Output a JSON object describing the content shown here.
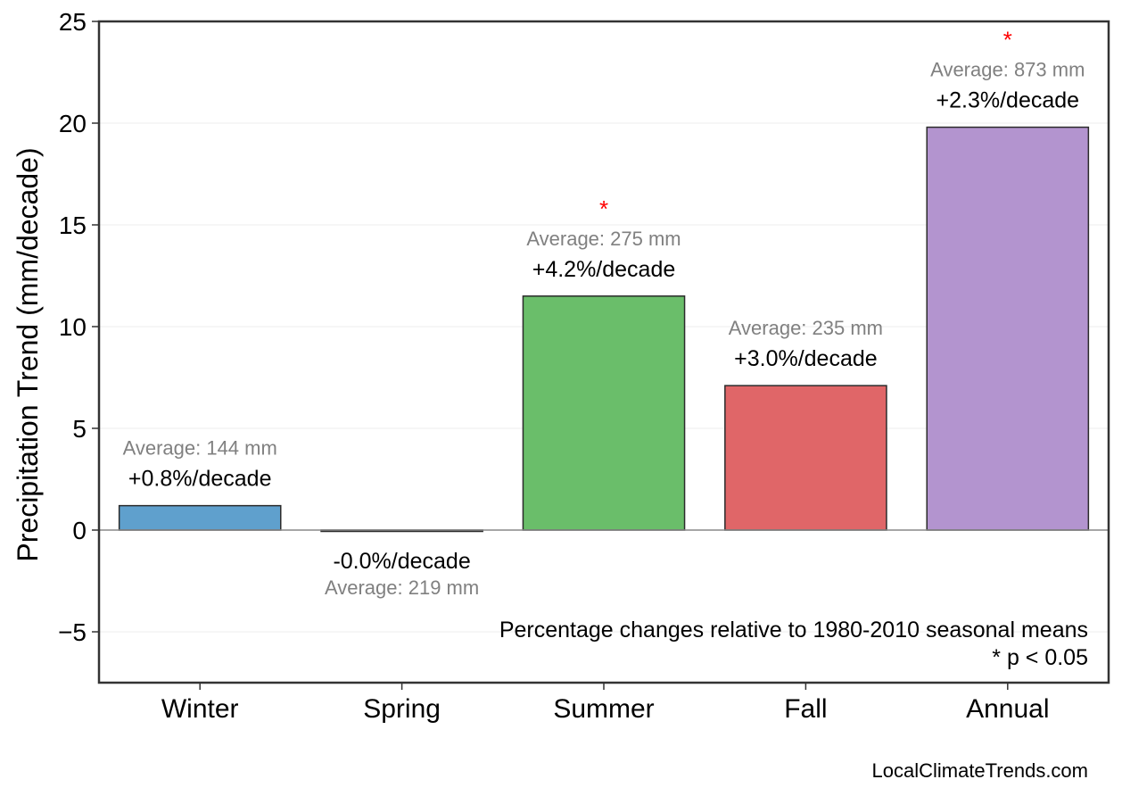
{
  "chart_data": {
    "type": "bar",
    "ylabel": "Precipitation Trend (mm/decade)",
    "xlabel": "",
    "ylim": [
      -7.5,
      25
    ],
    "yticks": [
      -5,
      0,
      5,
      10,
      15,
      20,
      25
    ],
    "ytick_labels": [
      "−5",
      "0",
      "5",
      "10",
      "15",
      "20",
      "25"
    ],
    "grid": "horizontal",
    "categories": [
      "Winter",
      "Spring",
      "Summer",
      "Fall",
      "Annual"
    ],
    "values": [
      1.2,
      -0.05,
      11.5,
      7.1,
      19.8
    ],
    "colors": [
      "#5fa0cd",
      "#6abe6a",
      "#e06668",
      "#b394cf"
    ],
    "bar_colors": [
      "#5fa0cd",
      "#5fa0cd",
      "#6abe6a",
      "#e06668",
      "#b394cf"
    ],
    "pct_labels": [
      "+0.8%/decade",
      "-0.0%/decade",
      "+4.2%/decade",
      "+3.0%/decade",
      "+2.3%/decade"
    ],
    "avg_labels": [
      "Average: 144 mm",
      "Average: 219 mm",
      "Average: 275 mm",
      "Average: 235 mm",
      "Average: 873 mm"
    ],
    "significant": [
      false,
      false,
      true,
      false,
      true
    ],
    "significance_marker": "*",
    "significance_color": "#ff0000",
    "annotation": [
      "Percentage changes relative to 1980-2010 seasonal means",
      "* p < 0.05"
    ],
    "credit": "LocalClimateTrends.com"
  }
}
